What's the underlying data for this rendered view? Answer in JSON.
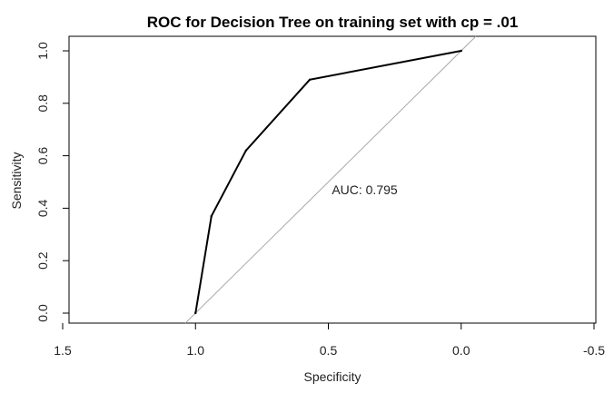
{
  "chart_data": {
    "type": "line",
    "title": "ROC for Decision Tree on training set with cp = .01",
    "xlabel": "Specificity",
    "ylabel": "Sensitivity",
    "x_reversed": true,
    "xlim": [
      1.5,
      -0.5
    ],
    "ylim": [
      0.0,
      1.0
    ],
    "x_ticks": [
      "1.5",
      "1.0",
      "0.5",
      "0.0",
      "-0.5"
    ],
    "y_ticks": [
      "0.0",
      "0.2",
      "0.4",
      "0.6",
      "0.8",
      "1.0"
    ],
    "grid": false,
    "series": [
      {
        "color": "#000000",
        "points": [
          {
            "specificity": 1.0,
            "sensitivity": 0.0
          },
          {
            "specificity": 0.94,
            "sensitivity": 0.37
          },
          {
            "specificity": 0.81,
            "sensitivity": 0.62
          },
          {
            "specificity": 0.57,
            "sensitivity": 0.89
          },
          {
            "specificity": 0.0,
            "sensitivity": 1.0
          }
        ]
      }
    ],
    "reference_line": {
      "color": "#aaaaaa",
      "from": {
        "specificity": 1.0,
        "sensitivity": 0.0
      },
      "to": {
        "specificity": 0.0,
        "sensitivity": 1.0
      }
    },
    "annotation": {
      "text": "AUC: 0.795",
      "specificity": 0.5,
      "sensitivity": 0.47
    }
  }
}
